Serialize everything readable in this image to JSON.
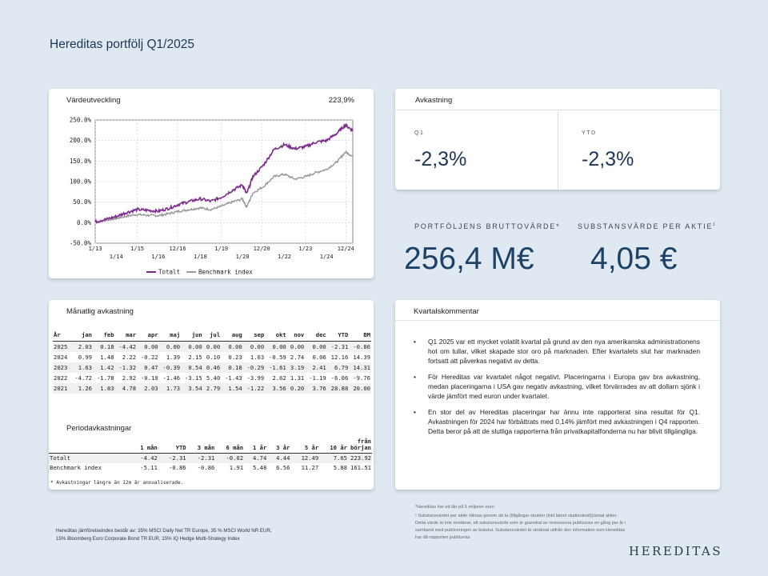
{
  "page": {
    "title": "Hereditas portfölj Q1/2025"
  },
  "chart_card": {
    "label": "Värdeutveckling",
    "value_label": "223,9%"
  },
  "chart_data": {
    "type": "line",
    "title": "Värdeutveckling",
    "y_ticks": [
      "250.0%",
      "200.0%",
      "150.0%",
      "100.0%",
      "50.0%",
      "0.0%",
      "-50.0%"
    ],
    "x_ticks_top": [
      "1/13",
      "1/15",
      "12/16",
      "1/19",
      "12/20",
      "1/23",
      "12/24"
    ],
    "x_ticks_bottom": [
      "1/14",
      "1/16",
      "1/18",
      "1/20",
      "1/22",
      "1/24"
    ],
    "ylim": [
      -50,
      250
    ],
    "xlim": [
      2013.0,
      2025.25
    ],
    "legend": [
      "Totalt",
      "Benchmark index"
    ],
    "colors": {
      "Totalt": "#7b2a8c",
      "Benchmark index": "#9a9a9a"
    },
    "series": [
      {
        "name": "Totalt",
        "x": [
          2013.0,
          2013.5,
          2014.0,
          2014.5,
          2015.0,
          2015.5,
          2016.0,
          2016.5,
          2017.0,
          2017.5,
          2018.0,
          2018.5,
          2019.0,
          2019.5,
          2020.0,
          2020.2,
          2020.5,
          2021.0,
          2021.5,
          2022.0,
          2022.5,
          2023.0,
          2023.5,
          2024.0,
          2024.5,
          2024.9,
          2025.25
        ],
        "values": [
          2,
          8,
          15,
          25,
          32,
          30,
          28,
          35,
          45,
          52,
          58,
          52,
          62,
          78,
          92,
          70,
          112,
          140,
          178,
          190,
          180,
          185,
          196,
          200,
          218,
          238,
          224
        ]
      },
      {
        "name": "Benchmark index",
        "x": [
          2013.0,
          2013.5,
          2014.0,
          2014.5,
          2015.0,
          2015.5,
          2016.0,
          2016.5,
          2017.0,
          2017.5,
          2018.0,
          2018.5,
          2019.0,
          2019.5,
          2020.0,
          2020.2,
          2020.5,
          2021.0,
          2021.5,
          2022.0,
          2022.5,
          2023.0,
          2023.5,
          2024.0,
          2024.5,
          2024.9,
          2025.25
        ],
        "values": [
          2,
          6,
          10,
          16,
          20,
          18,
          17,
          22,
          28,
          32,
          36,
          32,
          40,
          50,
          58,
          38,
          72,
          88,
          112,
          118,
          106,
          112,
          122,
          130,
          148,
          172,
          162
        ]
      }
    ]
  },
  "returns_card": {
    "label": "Avkastning",
    "q1_label": "Q1",
    "q1_value": "-2,3%",
    "ytd_label": "YTD",
    "ytd_value": "-2,3%"
  },
  "nav": {
    "gross_label": "PORTFÖLJENS BRUTTOVÄRDE*",
    "gross_value": "256,4 M€",
    "share_label": "SUBSTANSVÄRDE PER AKTIE",
    "share_sup": "1",
    "share_value": "4,05 €"
  },
  "monthly": {
    "label": "Månatlig avkastning",
    "headers": [
      "År",
      "jan",
      "feb",
      "mar",
      "apr",
      "maj",
      "jun",
      "jul",
      "aug",
      "sep",
      "okt",
      "nov",
      "dec",
      "YTD",
      "BM"
    ],
    "rows": [
      [
        "2025",
        "2.03",
        "0.18",
        "-4.42",
        "0.00",
        "0.00",
        "0.00",
        "0.00",
        "0.00",
        "0.00",
        "0.00",
        "0.00",
        "0.00",
        "-2.31",
        "-0.86"
      ],
      [
        "2024",
        "0.99",
        "1.48",
        "2.22",
        "-0.22",
        "1.39",
        "2.15",
        "0.10",
        "0.23",
        "1.03",
        "-0.59",
        "2.74",
        "0.06",
        "12.16",
        "14.39"
      ],
      [
        "2023",
        "1.63",
        "1.42",
        "-1.32",
        "0.47",
        "-0.39",
        "0.54",
        "0.46",
        "0.18",
        "-0.29",
        "-1.61",
        "3.19",
        "2.41",
        "6.79",
        "14.31"
      ],
      [
        "2022",
        "-4.72",
        "-1.78",
        "2.92",
        "-0.19",
        "-1.46",
        "-3.15",
        "5.40",
        "-1.43",
        "-3.99",
        "2.62",
        "1.31",
        "-1.19",
        "-6.06",
        "-9.76"
      ],
      [
        "2021",
        "1.26",
        "1.83",
        "4.78",
        "2.03",
        "1.73",
        "3.54",
        "2.79",
        "1.54",
        "-1.22",
        "3.56",
        "0.20",
        "3.76",
        "28.88",
        "20.00"
      ]
    ]
  },
  "period": {
    "label": "Periodavkastningar",
    "headers": [
      "",
      "1 mån",
      "YTD",
      "3 mån",
      "6 mån",
      "1 år",
      "3 år",
      "5 år",
      "10 år",
      "från början"
    ],
    "rows": [
      [
        "Totalt",
        "-4.42",
        "-2.31",
        "-2.31",
        "-0.02",
        "4.74",
        "4.44",
        "12.49",
        "7.65",
        "223.92"
      ],
      [
        "Benchmark index",
        "-5.11",
        "-0.86",
        "-0.86",
        "1.91",
        "5.48",
        "6.56",
        "11.27",
        "5.88",
        "161.51"
      ]
    ],
    "note": "* Avkastningar längre än 12m är annualiserade."
  },
  "commentary": {
    "label": "Kvartalskommentar",
    "bullets": [
      "Q1 2025 var ett mycket volatilt kvartal på grund av den nya amerikanska administrationens hot om tullar, vilket skapade stor oro på marknaden. Efter kvartalets slut har marknaden fortsatt att påverkas negativt av detta.",
      "För Hereditas var kvartalet något negativt. Placeringarna i Europa gav bra avkastning, medan placeringarna i USA gav negativ avkastning, vilket förvärrades av att dollarn sjönk i värde jämfört med euron under kvartalet.",
      "En stor del av Hereditas placeringar har ännu inte rapporterat sina resultat för Q1. Avkastningen för 2024 har förbättrats med 0,14% jämfört med avkastningen i Q4 rapporten. Detta beror på att de slutliga rapporterna från privatkapitalfonderna nu har blivit tillgängliga."
    ]
  },
  "footer": {
    "benchmark_note_1": "Hereditas jämförelseindex består av: 35% MSCI Daily Net TR Europe, 35 % MSCI World NR EUR,",
    "benchmark_note_2": "15% Bloomberg Euro Corporate Bond TR EUR, 15% IQ Hedge Multi-Strategy Index",
    "note_loan": "*Hereditas har ett lån på 5 miljoner euro",
    "note_nav_1": "¹  Substansvärdet per aktie räknas genom att ta (tillgångar-skulder (inkl.latent skatteskuld))/antal aktier.",
    "note_nav_2": "Detta värde är inte reviderat, ett substansvärde som är granskat av revisorerna publiceras en gång per år i",
    "note_nav_3": "samband med publiceringen av bokslut. Substansvärdet är uträknat utifrån den information som Hereditas",
    "note_nav_4": "har då rapporten publiceras",
    "logo": "HEREDITAS"
  }
}
